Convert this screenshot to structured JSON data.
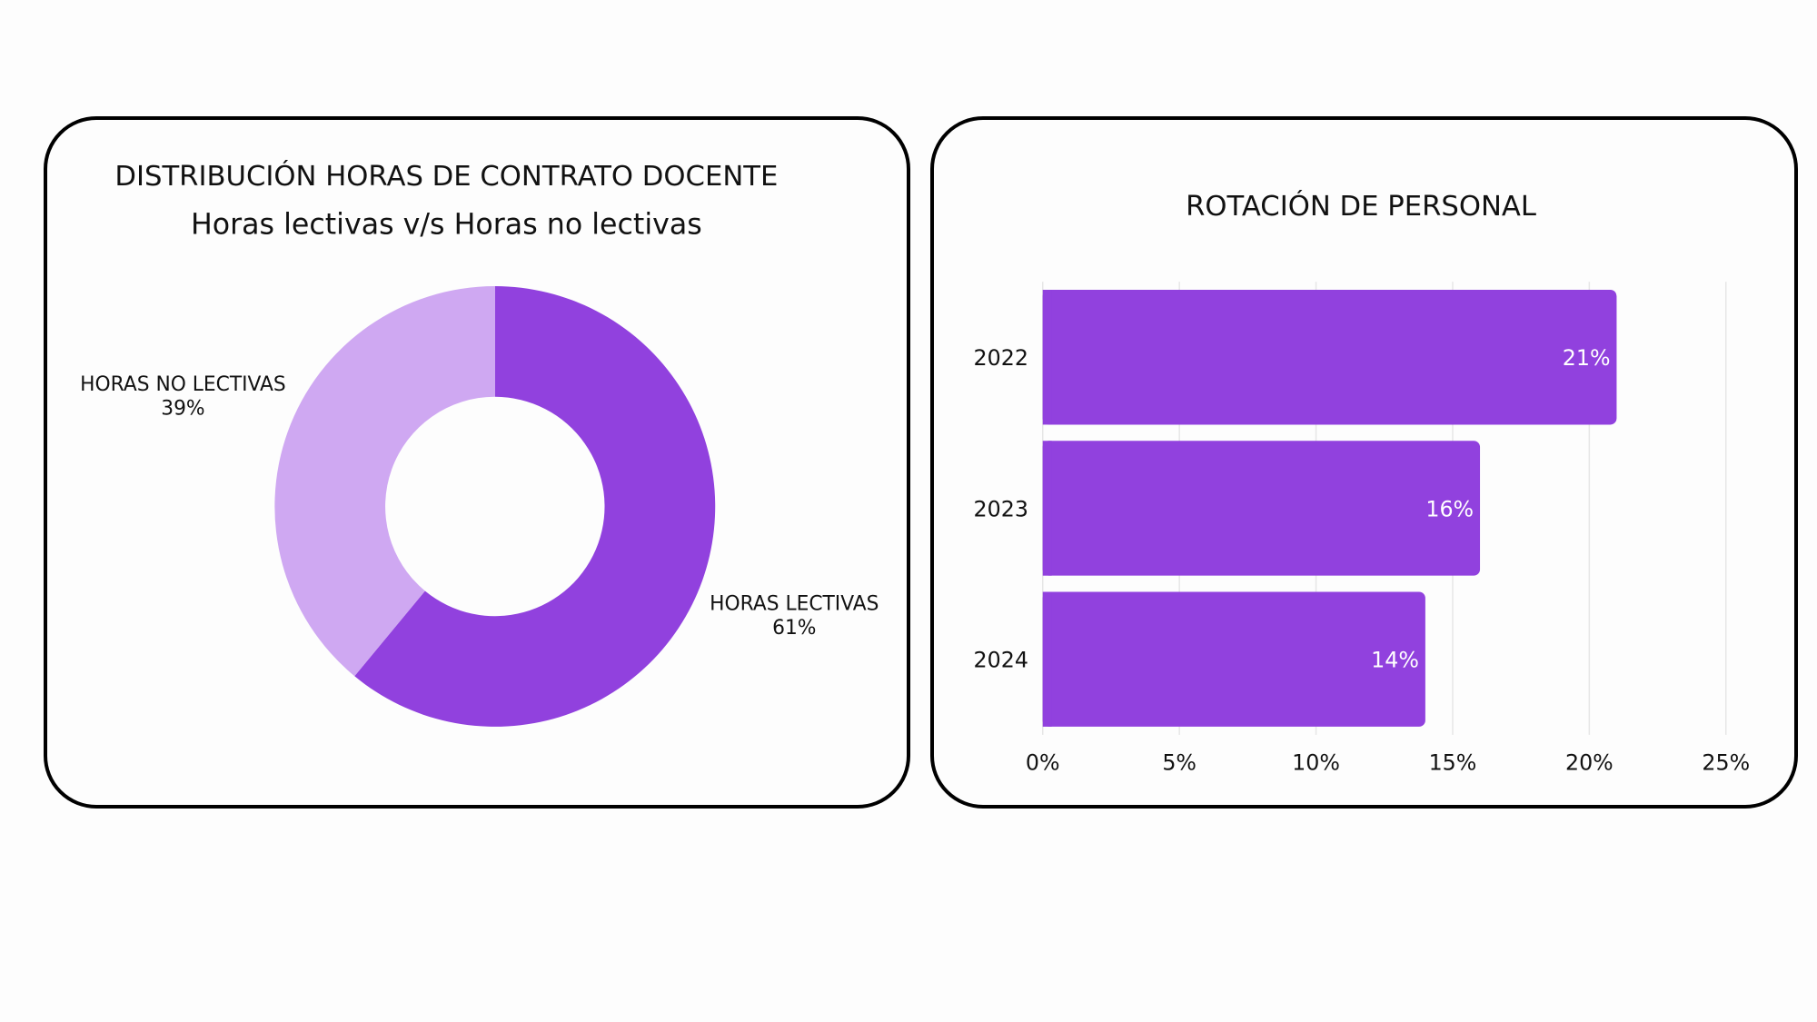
{
  "chart_data": [
    {
      "type": "pie",
      "title": "DISTRIBUCIÓN HORAS DE CONTRATO DOCENTE",
      "subtitle": "Horas lectivas v/s Horas no lectivas",
      "categories": [
        "HORAS LECTIVAS",
        "HORAS NO LECTIVAS"
      ],
      "values": [
        61,
        39
      ],
      "labels": [
        "61%",
        "39%"
      ],
      "colors": [
        "#9141de",
        "#cfa8f2"
      ],
      "donut": true,
      "legend": "none"
    },
    {
      "type": "bar",
      "orientation": "horizontal",
      "title": "ROTACIÓN DE PERSONAL",
      "categories": [
        "2022",
        "2023",
        "2024"
      ],
      "values": [
        21,
        16,
        14
      ],
      "labels": [
        "21%",
        "16%",
        "14%"
      ],
      "xlim": [
        0,
        25
      ],
      "xticks": [
        "0%",
        "5%",
        "10%",
        "15%",
        "20%",
        "25%"
      ],
      "grid": true,
      "color": "#9141de",
      "legend": "none"
    }
  ]
}
